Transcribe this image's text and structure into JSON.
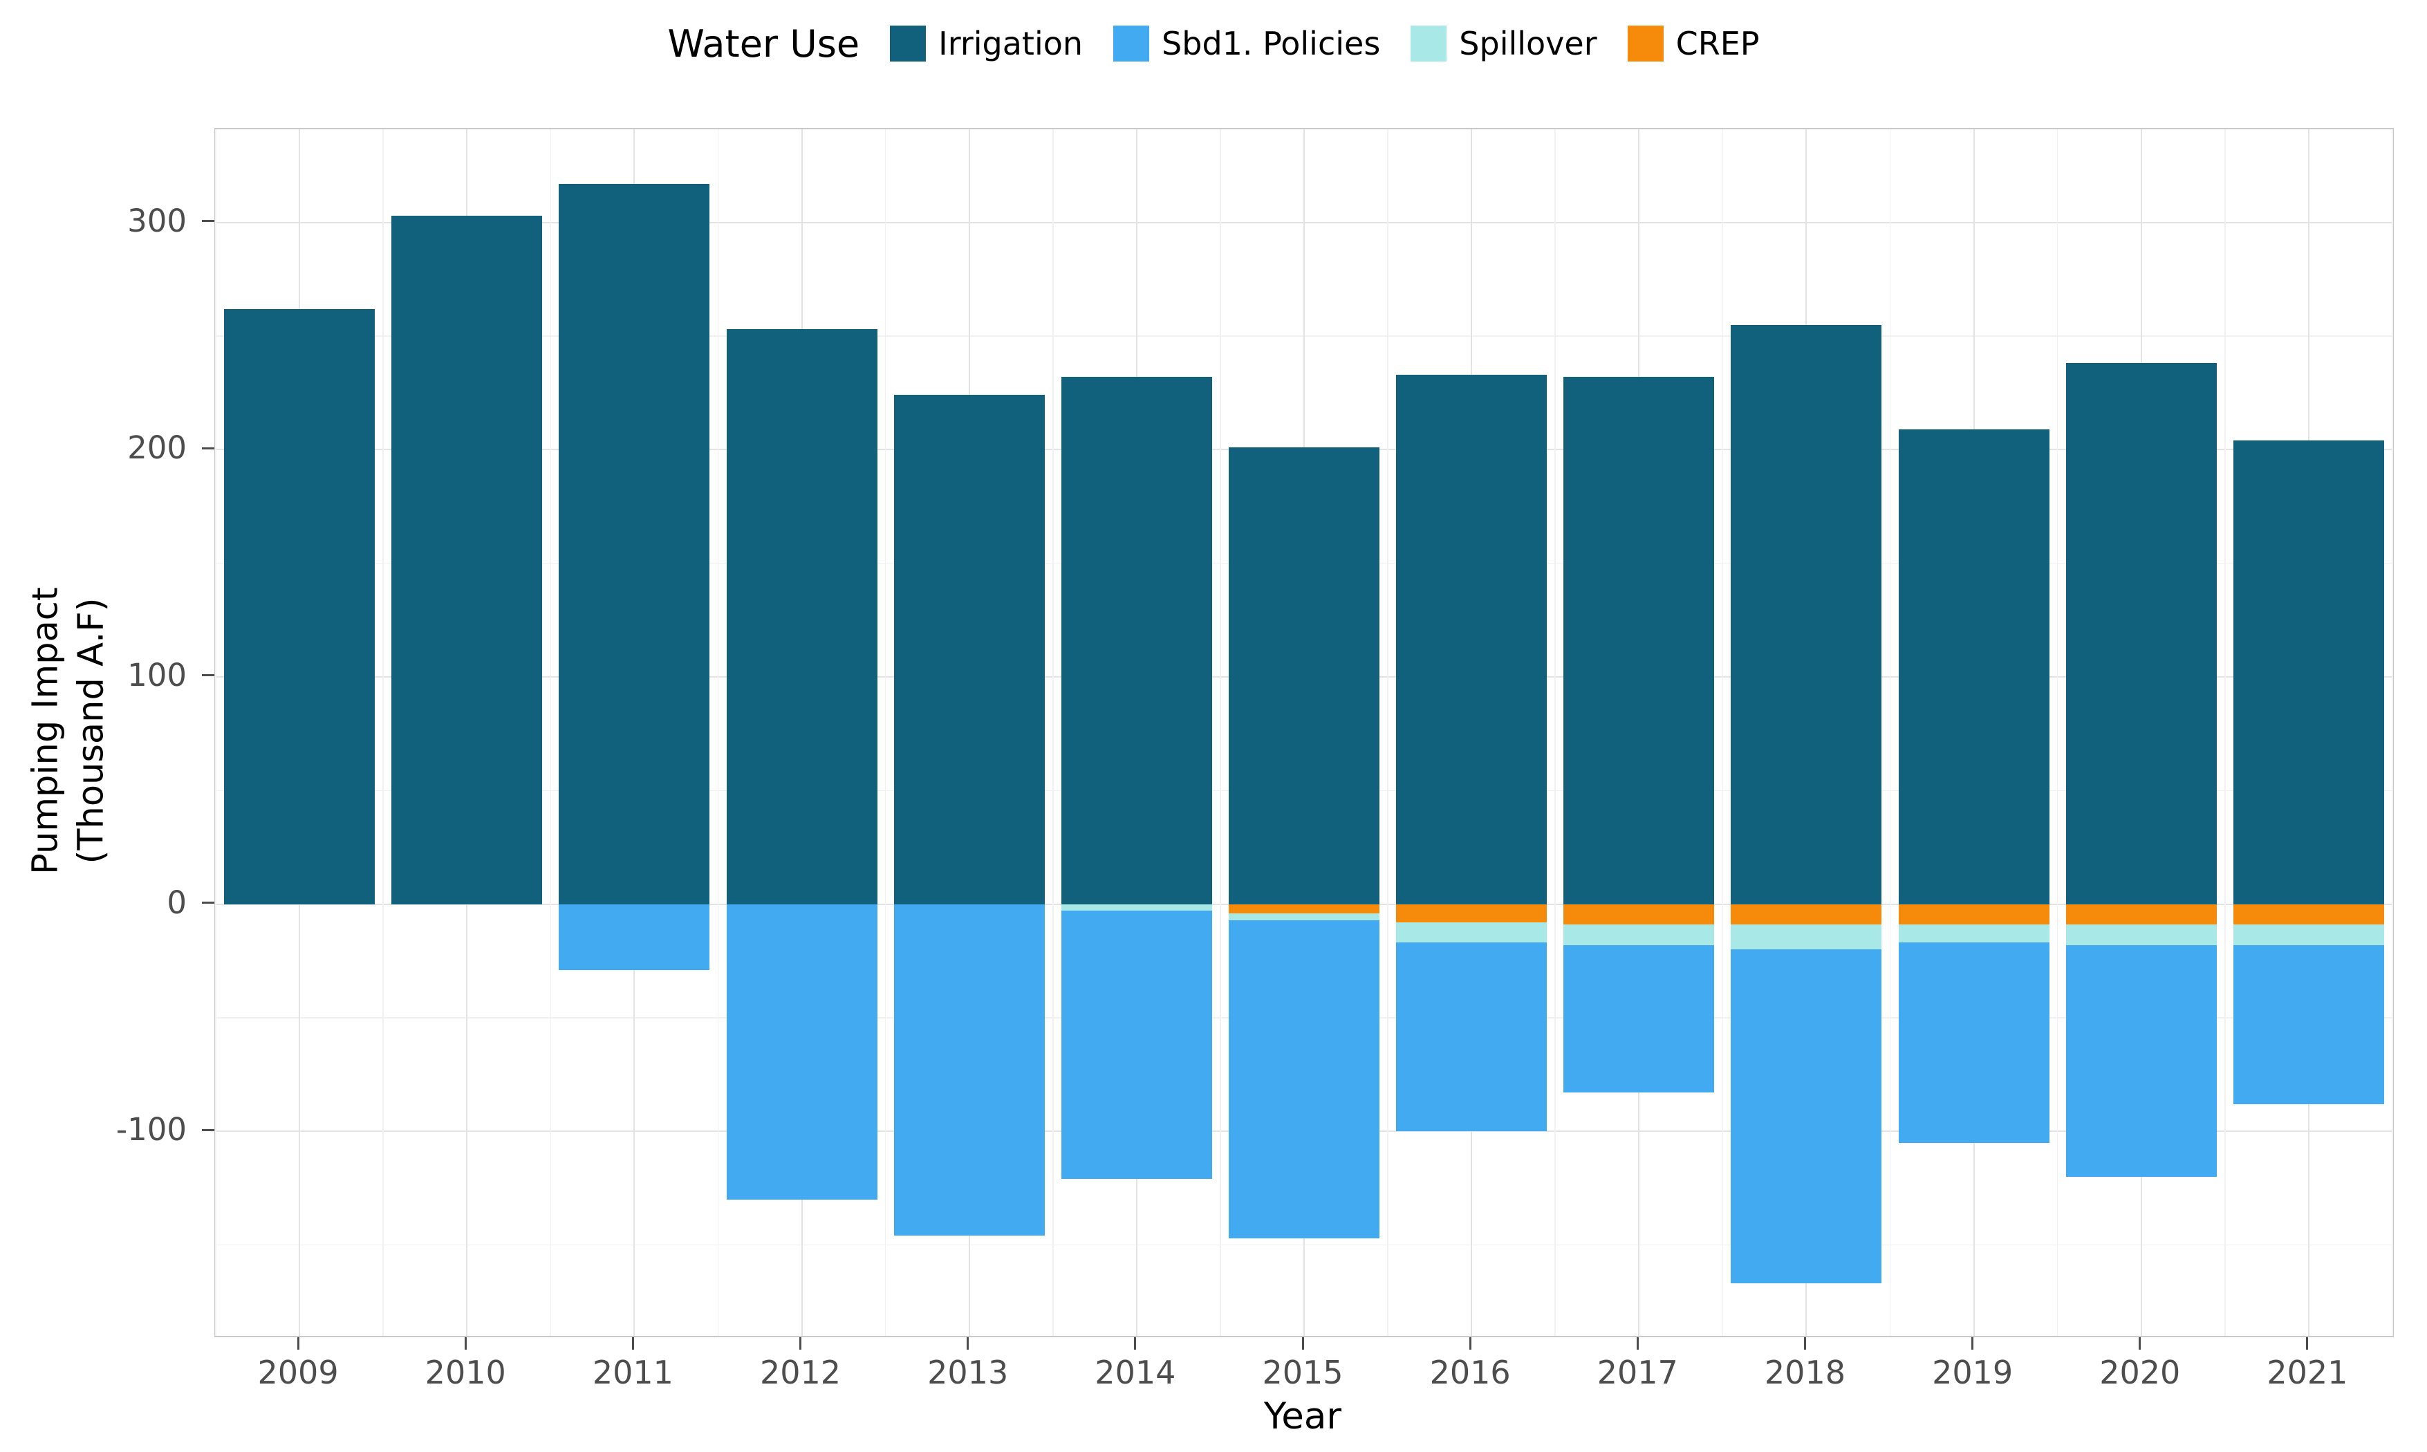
{
  "chart_data": {
    "type": "bar",
    "stacked": true,
    "legend_title": "Water Use",
    "legend_position": "top",
    "xlabel": "Year",
    "ylabel": "Pumping Impact\n(Thousand A.F)",
    "categories": [
      "2009",
      "2010",
      "2011",
      "2012",
      "2013",
      "2014",
      "2015",
      "2016",
      "2017",
      "2018",
      "2019",
      "2020",
      "2021"
    ],
    "series": [
      {
        "name": "Irrigation",
        "color": "#11607C",
        "values": [
          262,
          303,
          317,
          253,
          224,
          232,
          201,
          233,
          232,
          255,
          209,
          238,
          204
        ]
      },
      {
        "name": "Sbd1. Policies",
        "color": "#41AAF1",
        "values": [
          0,
          0,
          -29,
          -130,
          -146,
          -118,
          -140,
          -83,
          -65,
          -147,
          -88,
          -102,
          -70
        ]
      },
      {
        "name": "Spillover",
        "color": "#A8E8E6",
        "values": [
          0,
          0,
          0,
          0,
          0,
          -3,
          -3,
          -9,
          -9,
          -11,
          -8,
          -9,
          -9
        ]
      },
      {
        "name": "CREP",
        "color": "#F68A0A",
        "values": [
          0,
          0,
          0,
          0,
          0,
          0,
          -4,
          -8,
          -9,
          -9,
          -9,
          -9,
          -9
        ]
      }
    ],
    "ylim": [
      -190,
      341
    ],
    "yticks": [
      300,
      200,
      100,
      0,
      -100
    ],
    "yminor": [
      250,
      150,
      50,
      -50,
      -150
    ],
    "bar_width_frac": 0.9,
    "grid": true,
    "colors": {
      "axis_text": "#4D4D4D",
      "grid_major": "#E3E3E3",
      "grid_minor": "#F1F1F1",
      "panel_border": "#C9C9C9",
      "background": "#FFFFFF"
    }
  }
}
